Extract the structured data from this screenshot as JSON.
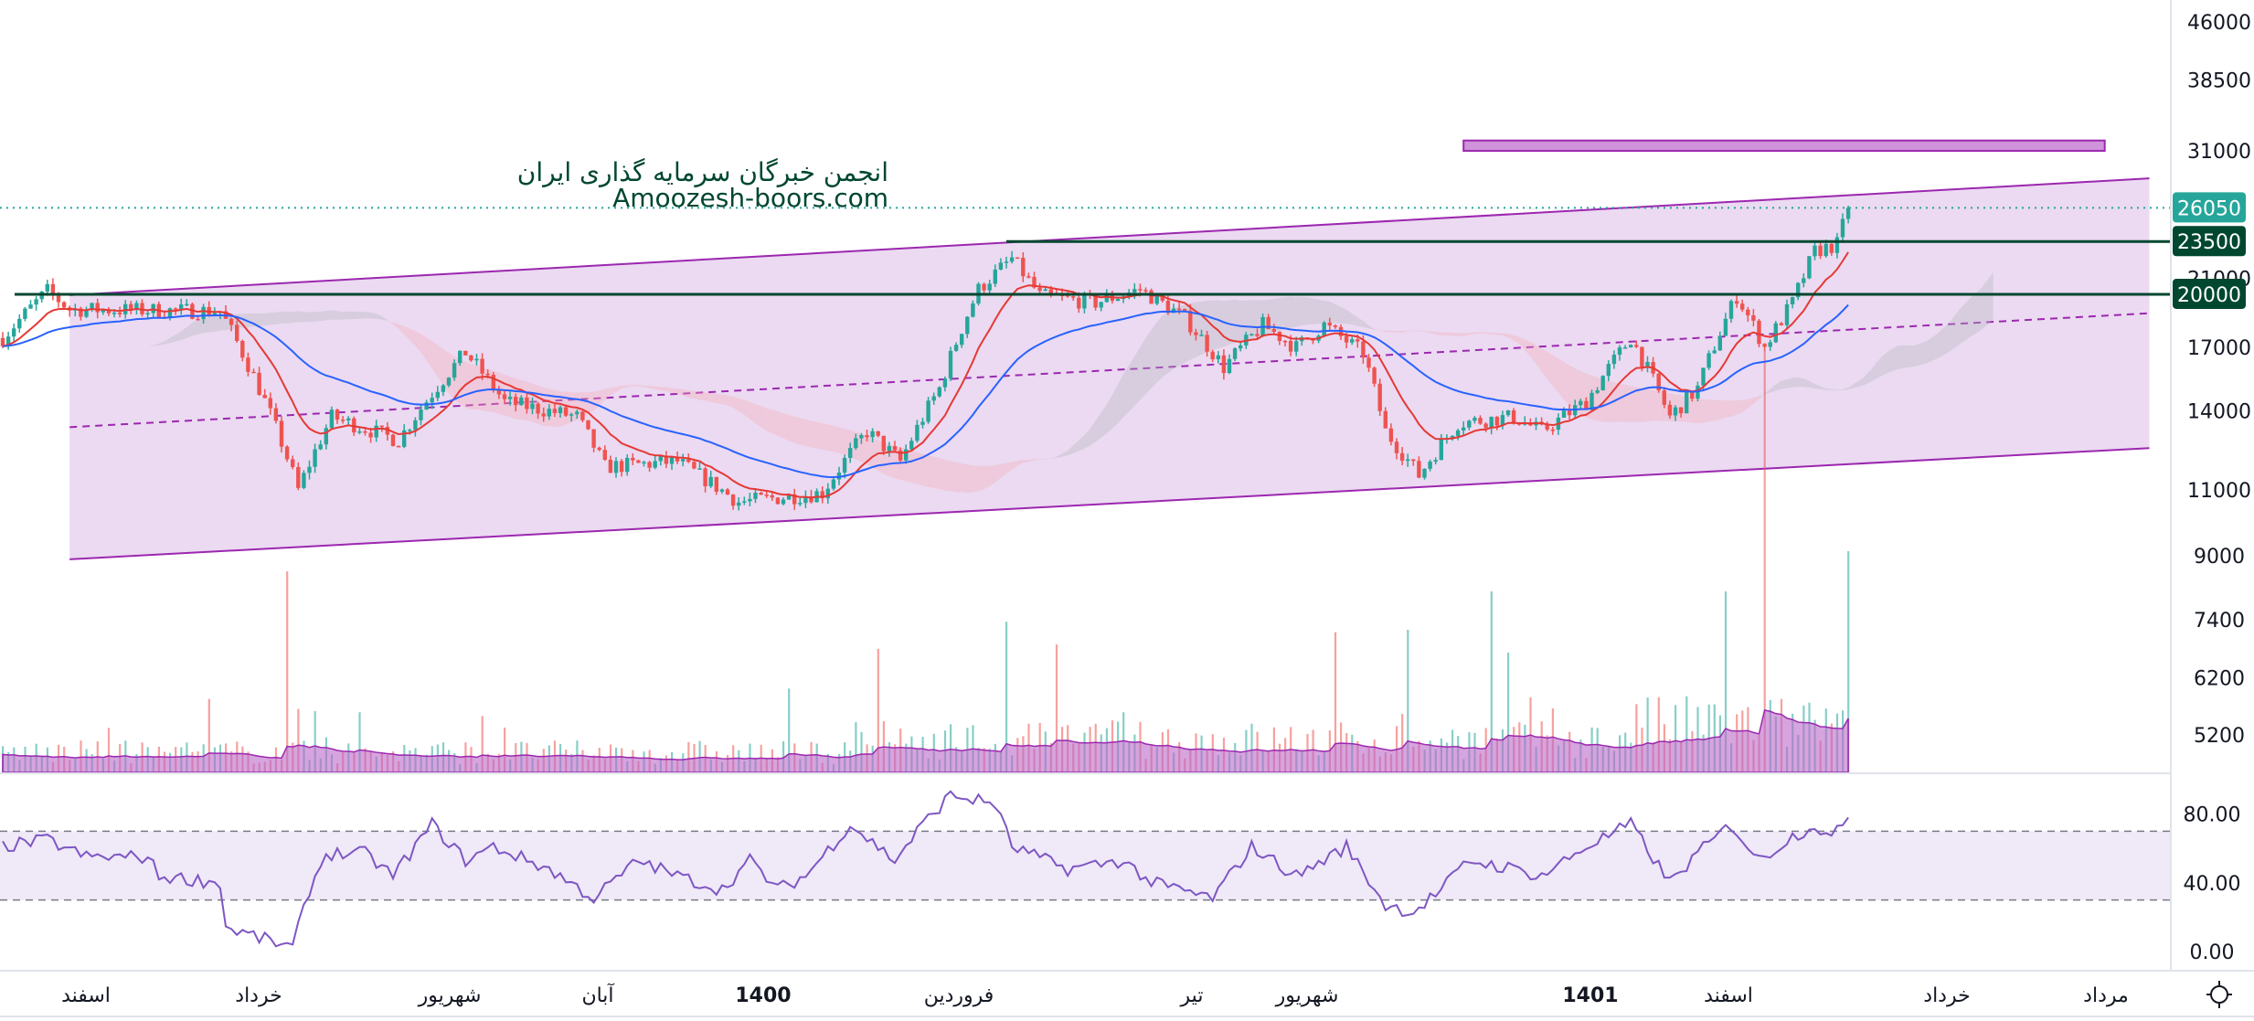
{
  "watermark": {
    "line1": "انجمن خبرگان سرمایه گذاری ایران",
    "line2": "Amoozesh-boors.com"
  },
  "colors": {
    "up": "#26a69a",
    "down": "#ef5350",
    "channel": "#9c27b0",
    "channel_fill": "#e8d3ee",
    "level_line": "#00472f",
    "last_price_tag": "#26a69a",
    "ma_fast": "#e53935",
    "ma_slow": "#2962ff",
    "rsi": "#7e57c2",
    "rsi_band": "#efe9f8",
    "volume_ma": "#ba68c8",
    "rect": "#ce93d8"
  },
  "toolbar": {
    "settings_icon": "sun-gear-icon"
  },
  "chart_data": {
    "type": "candlestick",
    "scale": "log",
    "ylim": [
      4800,
      46000
    ],
    "price_ticks": [
      "46000",
      "38500",
      "31000",
      "21000",
      "17000",
      "14000",
      "11000",
      "9000",
      "7400",
      "6200",
      "5200"
    ],
    "tags": {
      "last_price": "26050",
      "level_high": "23500",
      "level_low": "20000"
    },
    "levels": [
      23500,
      20000
    ],
    "last_price": 26050,
    "bar_count": 332,
    "approx_close_path": [
      [
        0,
        17500
      ],
      [
        8,
        20200
      ],
      [
        12,
        19100
      ],
      [
        39,
        19000
      ],
      [
        53,
        11000
      ],
      [
        59,
        13750
      ],
      [
        71,
        12800
      ],
      [
        83,
        16750
      ],
      [
        90,
        14400
      ],
      [
        103,
        13750
      ],
      [
        108,
        11800
      ],
      [
        121,
        12000
      ],
      [
        132,
        10600
      ],
      [
        147,
        10900
      ],
      [
        155,
        13150
      ],
      [
        161,
        12000
      ],
      [
        168,
        15000
      ],
      [
        175,
        20300
      ],
      [
        181,
        22300
      ],
      [
        186,
        19900
      ],
      [
        196,
        19500
      ],
      [
        204,
        20300
      ],
      [
        212,
        18600
      ],
      [
        219,
        16000
      ],
      [
        226,
        18200
      ],
      [
        232,
        17000
      ],
      [
        237,
        18200
      ],
      [
        244,
        16700
      ],
      [
        248,
        13150
      ],
      [
        254,
        11500
      ],
      [
        261,
        13500
      ],
      [
        271,
        13750
      ],
      [
        276,
        13150
      ],
      [
        284,
        14400
      ],
      [
        292,
        17500
      ],
      [
        299,
        13750
      ],
      [
        304,
        15000
      ],
      [
        311,
        19900
      ],
      [
        316,
        17000
      ],
      [
        321,
        19500
      ],
      [
        325,
        22800
      ],
      [
        329,
        23300
      ],
      [
        331,
        26050
      ]
    ],
    "time_labels": [
      "اسفند",
      "خرداد",
      "شهریور",
      "آبان",
      "1400",
      "فروردین",
      "تیر",
      "شهریور",
      "1401",
      "اسفند",
      "خرداد",
      "مرداد"
    ],
    "rsi": {
      "ticks": [
        "80.00",
        "40.00",
        "0.00"
      ],
      "ylim": [
        0,
        100
      ],
      "bands": [
        30,
        70
      ],
      "approx_path": [
        [
          0,
          61
        ],
        [
          8,
          65
        ],
        [
          15,
          55
        ],
        [
          26,
          55
        ],
        [
          28,
          44
        ],
        [
          39,
          40
        ],
        [
          40,
          14
        ],
        [
          52,
          2
        ],
        [
          55,
          36
        ],
        [
          58,
          57
        ],
        [
          65,
          57
        ],
        [
          70,
          44
        ],
        [
          77,
          74
        ],
        [
          83,
          53
        ],
        [
          88,
          61
        ],
        [
          98,
          48
        ],
        [
          106,
          31
        ],
        [
          114,
          53
        ],
        [
          121,
          44
        ],
        [
          129,
          36
        ],
        [
          134,
          53
        ],
        [
          139,
          36
        ],
        [
          144,
          44
        ],
        [
          152,
          74
        ],
        [
          160,
          53
        ],
        [
          165,
          74
        ],
        [
          170,
          91
        ],
        [
          178,
          86
        ],
        [
          181,
          61
        ],
        [
          191,
          48
        ],
        [
          201,
          53
        ],
        [
          206,
          40
        ],
        [
          217,
          31
        ],
        [
          224,
          61
        ],
        [
          232,
          44
        ],
        [
          241,
          61
        ],
        [
          248,
          27
        ],
        [
          253,
          23
        ],
        [
          258,
          36
        ],
        [
          263,
          53
        ],
        [
          271,
          48
        ],
        [
          276,
          44
        ],
        [
          284,
          61
        ],
        [
          292,
          74
        ],
        [
          299,
          40
        ],
        [
          304,
          57
        ],
        [
          310,
          74
        ],
        [
          315,
          53
        ],
        [
          320,
          65
        ],
        [
          325,
          74
        ],
        [
          328,
          65
        ],
        [
          331,
          78
        ]
      ]
    },
    "volume_spikes": [
      [
        51,
        1.0
      ],
      [
        267,
        0.9
      ],
      [
        309,
        0.9
      ],
      [
        316,
        2.1
      ],
      [
        331,
        1.1
      ]
    ],
    "drawings": {
      "channel": {
        "start_bar": 12,
        "end_bar": 385,
        "upper": [
          19950,
          28500
        ],
        "lower": [
          8900,
          12500
        ]
      },
      "rectangle": {
        "start_bar": 262,
        "end_bar": 377,
        "top": 32000,
        "bottom": 31000
      }
    }
  }
}
